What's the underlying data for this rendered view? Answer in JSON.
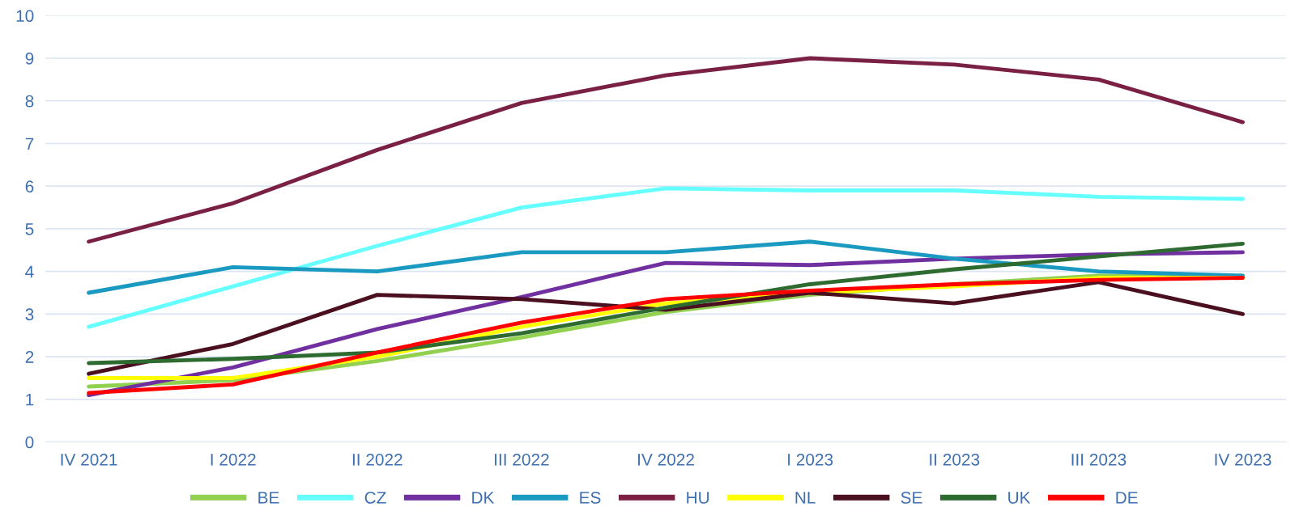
{
  "chart_data": {
    "type": "line",
    "categories": [
      "IV 2021",
      "I 2022",
      "II 2022",
      "III 2022",
      "IV 2022",
      "I 2023",
      "II 2023",
      "III 2023",
      "IV 2023"
    ],
    "ylim": [
      0,
      10
    ],
    "yticks": [
      0,
      1,
      2,
      3,
      4,
      5,
      6,
      7,
      8,
      9,
      10
    ],
    "grid": "y",
    "legend": "bottom",
    "marker": "none",
    "line_style": "solid",
    "series": [
      {
        "name": "BE",
        "color": "#92d050",
        "values": [
          1.3,
          1.45,
          1.9,
          2.45,
          3.05,
          3.45,
          3.7,
          3.9,
          3.9
        ]
      },
      {
        "name": "CZ",
        "color": "#66ffff",
        "values": [
          2.7,
          3.65,
          4.6,
          5.5,
          5.95,
          5.9,
          5.9,
          5.75,
          5.7
        ]
      },
      {
        "name": "DK",
        "color": "#7030a0",
        "values": [
          1.1,
          1.75,
          2.65,
          3.4,
          4.2,
          4.15,
          4.3,
          4.4,
          4.45
        ]
      },
      {
        "name": "ES",
        "color": "#1a9ac0",
        "values": [
          3.5,
          4.1,
          4.0,
          4.45,
          4.45,
          4.7,
          4.3,
          4.0,
          3.9
        ]
      },
      {
        "name": "HU",
        "color": "#7b2045",
        "values": [
          4.7,
          5.6,
          6.85,
          7.95,
          8.6,
          9.0,
          8.85,
          8.5,
          7.5
        ]
      },
      {
        "name": "NL",
        "color": "#ffff00",
        "values": [
          1.5,
          1.5,
          2.0,
          2.7,
          3.25,
          3.5,
          3.65,
          3.85,
          3.85
        ]
      },
      {
        "name": "SE",
        "color": "#4a1020",
        "values": [
          1.6,
          2.3,
          3.45,
          3.35,
          3.1,
          3.5,
          3.25,
          3.75,
          3.0
        ]
      },
      {
        "name": "UK",
        "color": "#2e6b30",
        "values": [
          1.85,
          1.95,
          2.1,
          2.55,
          3.15,
          3.7,
          4.05,
          4.35,
          4.65
        ]
      },
      {
        "name": "DE",
        "color": "#ff0000",
        "values": [
          1.15,
          1.35,
          2.1,
          2.8,
          3.35,
          3.55,
          3.7,
          3.8,
          3.85
        ]
      }
    ]
  }
}
